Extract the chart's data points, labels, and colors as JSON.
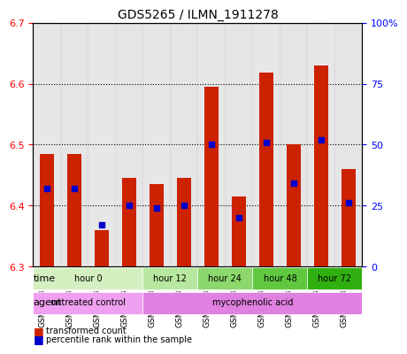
{
  "title": "GDS5265 / ILMN_1911278",
  "samples": [
    "GSM1133722",
    "GSM1133723",
    "GSM1133724",
    "GSM1133725",
    "GSM1133726",
    "GSM1133727",
    "GSM1133728",
    "GSM1133729",
    "GSM1133730",
    "GSM1133731",
    "GSM1133732",
    "GSM1133733"
  ],
  "transformed_count": [
    6.485,
    6.485,
    6.36,
    6.445,
    6.435,
    6.445,
    6.595,
    6.415,
    6.618,
    6.5,
    6.63,
    6.46
  ],
  "percentile_rank": [
    32,
    32,
    17,
    25,
    24,
    25,
    50,
    20,
    51,
    34,
    52,
    26
  ],
  "bar_bottom": 6.3,
  "ylim_left": [
    6.3,
    6.7
  ],
  "ylim_right": [
    0,
    100
  ],
  "right_ticks": [
    0,
    25,
    50,
    75,
    100
  ],
  "right_tick_labels": [
    "0",
    "25",
    "50",
    "75",
    "100%"
  ],
  "left_ticks": [
    6.3,
    6.4,
    6.5,
    6.6,
    6.7
  ],
  "time_groups": [
    {
      "label": "hour 0",
      "start": 0,
      "end": 4,
      "color": "#d4f0c0"
    },
    {
      "label": "hour 12",
      "start": 4,
      "end": 6,
      "color": "#b8e8a0"
    },
    {
      "label": "hour 24",
      "start": 6,
      "end": 8,
      "color": "#8cd86c"
    },
    {
      "label": "hour 48",
      "start": 8,
      "end": 10,
      "color": "#60c840"
    },
    {
      "label": "hour 72",
      "start": 10,
      "end": 12,
      "color": "#30b010"
    }
  ],
  "agent_groups": [
    {
      "label": "untreated control",
      "start": 0,
      "end": 4,
      "color": "#f0a0f0"
    },
    {
      "label": "mycophenolic acid",
      "start": 4,
      "end": 12,
      "color": "#e080e0"
    }
  ],
  "bar_color": "#cc2200",
  "percentile_color": "#0000cc",
  "bar_width": 0.5,
  "grid_color": "black",
  "grid_linestyle": "dotted",
  "background_color": "#ffffff",
  "plot_bg_color": "#ffffff",
  "legend_items": [
    {
      "label": "transformed count",
      "color": "#cc2200"
    },
    {
      "label": "percentile rank within the sample",
      "color": "#0000cc"
    }
  ]
}
